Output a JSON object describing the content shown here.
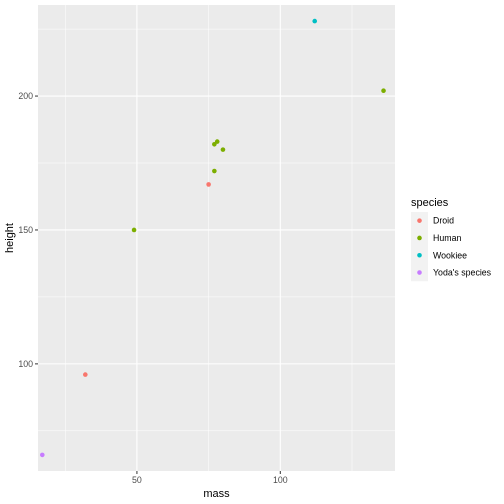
{
  "chart_data": {
    "type": "scatter",
    "xlabel": "mass",
    "ylabel": "height",
    "xlim": [
      15.5,
      140
    ],
    "ylim": [
      60,
      234
    ],
    "x_ticks": [
      50,
      100
    ],
    "y_ticks": [
      100,
      150,
      200
    ],
    "grid": true,
    "legend": {
      "title": "species",
      "placement": "right"
    },
    "series": [
      {
        "name": "Droid",
        "color": "#F8766D",
        "points": [
          {
            "x": 75,
            "y": 167
          },
          {
            "x": 32,
            "y": 96
          }
        ]
      },
      {
        "name": "Human",
        "color": "#7CAE00",
        "points": [
          {
            "x": 77,
            "y": 172
          },
          {
            "x": 136,
            "y": 202
          },
          {
            "x": 49,
            "y": 150
          },
          {
            "x": 77,
            "y": 182
          },
          {
            "x": 78,
            "y": 183
          },
          {
            "x": 80,
            "y": 180
          }
        ]
      },
      {
        "name": "Wookiee",
        "color": "#00BFC4",
        "points": [
          {
            "x": 112,
            "y": 228
          }
        ]
      },
      {
        "name": "Yoda's species",
        "color": "#C77CFF",
        "points": [
          {
            "x": 17,
            "y": 66
          }
        ]
      }
    ]
  }
}
